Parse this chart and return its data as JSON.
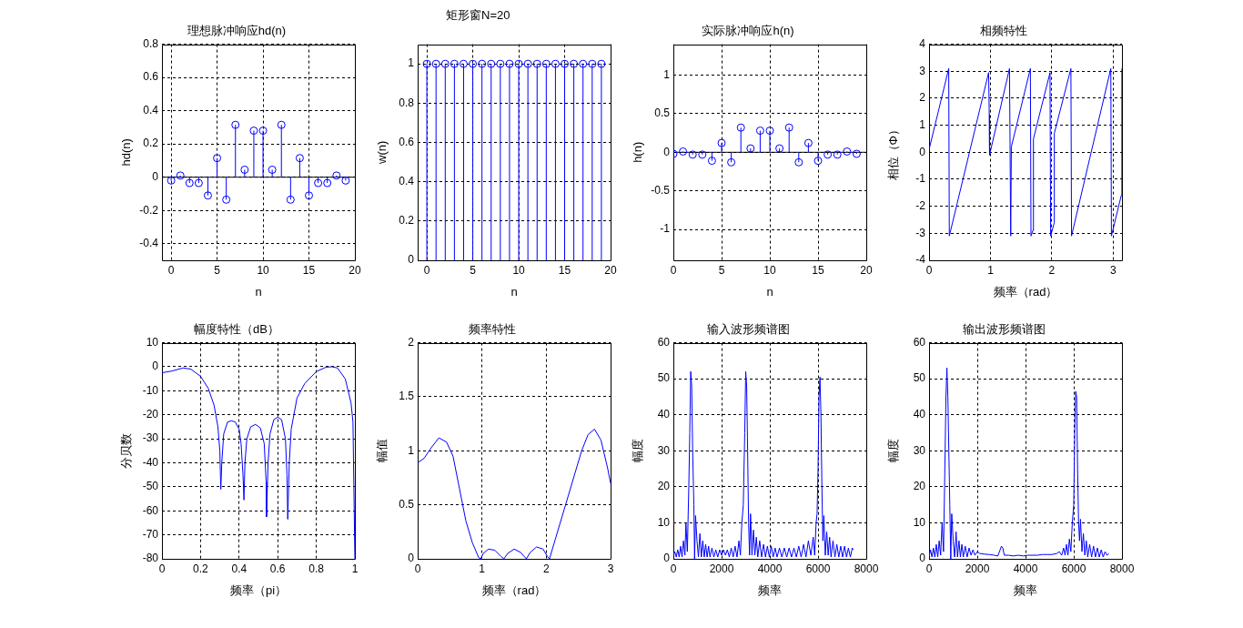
{
  "chart_data": [
    {
      "type": "other",
      "title": "矩形窗N=20"
    },
    {
      "type": "lollipop",
      "title": "理想脉冲响应hd(n)",
      "xlabel": "n",
      "ylabel": "hd(n)",
      "color": "#0000ff",
      "marker": "circle",
      "grid": true,
      "x": [
        0,
        1,
        2,
        3,
        4,
        5,
        6,
        7,
        8,
        9,
        10,
        11,
        12,
        13,
        14,
        15,
        16,
        17,
        18,
        19
      ],
      "values": [
        -0.02,
        0.01,
        -0.035,
        -0.035,
        -0.11,
        0.115,
        -0.135,
        0.315,
        0.045,
        0.28,
        0.28,
        0.045,
        0.315,
        -0.135,
        0.115,
        -0.11,
        -0.035,
        -0.035,
        0.01,
        -0.02
      ],
      "xlim": [
        -1,
        20
      ],
      "ylim": [
        -0.5,
        0.8
      ],
      "xticks": [
        0,
        5,
        10,
        15,
        20
      ],
      "yticks": [
        -0.4,
        -0.2,
        0,
        0.2,
        0.4,
        0.6,
        0.8
      ],
      "ref_lines": [
        {
          "axis": "y",
          "value": 0,
          "color": "#000000"
        }
      ]
    },
    {
      "type": "lollipop",
      "xlabel": "n",
      "ylabel": "w(n)",
      "color": "#0000ff",
      "marker": "circle",
      "grid": true,
      "x": [
        0,
        1,
        2,
        3,
        4,
        5,
        6,
        7,
        8,
        9,
        10,
        11,
        12,
        13,
        14,
        15,
        16,
        17,
        18,
        19
      ],
      "values": [
        1,
        1,
        1,
        1,
        1,
        1,
        1,
        1,
        1,
        1,
        1,
        1,
        1,
        1,
        1,
        1,
        1,
        1,
        1,
        1
      ],
      "xlim": [
        -1,
        20
      ],
      "ylim": [
        0,
        1.1
      ],
      "xticks": [
        0,
        5,
        10,
        15,
        20
      ],
      "yticks": [
        0,
        0.2,
        0.4,
        0.6,
        0.8,
        1
      ]
    },
    {
      "type": "lollipop",
      "title": "实际脉冲响应h(n)",
      "xlabel": "n",
      "ylabel": "h(n)",
      "color": "#0000ff",
      "marker": "circle",
      "grid": true,
      "x": [
        0,
        1,
        2,
        3,
        4,
        5,
        6,
        7,
        8,
        9,
        10,
        11,
        12,
        13,
        14,
        15,
        16,
        17,
        18,
        19
      ],
      "values": [
        -0.02,
        0.01,
        -0.03,
        -0.03,
        -0.11,
        0.12,
        -0.13,
        0.32,
        0.05,
        0.28,
        0.28,
        0.05,
        0.32,
        -0.13,
        0.12,
        -0.11,
        -0.03,
        -0.03,
        0.01,
        -0.02
      ],
      "xlim": [
        0,
        20
      ],
      "ylim": [
        -1.4,
        1.4
      ],
      "xticks": [
        0,
        5,
        10,
        15,
        20
      ],
      "yticks": [
        -1,
        -0.5,
        0,
        0.5,
        1
      ],
      "ref_lines": [
        {
          "axis": "y",
          "value": 0,
          "color": "#000000"
        }
      ]
    },
    {
      "type": "line",
      "title": "相频特性",
      "xlabel": "频率（rad）",
      "ylabel": "相位（Φ）",
      "color": "#0000ff",
      "grid": true,
      "x": [
        0,
        0.32,
        0.33,
        0.97,
        0.98,
        0.98,
        0.99,
        1.31,
        1.33,
        1.34,
        1.65,
        1.66,
        1.69,
        1.7,
        1.97,
        1.98,
        2.04,
        2.04,
        2.31,
        2.32,
        2.96,
        2.97,
        3.13,
        3.14
      ],
      "values": [
        0.1,
        3.1,
        -3.1,
        2.95,
        1.4,
        -0.1,
        -0.1,
        3.1,
        -3.1,
        0.2,
        3.1,
        -3.1,
        -2.9,
        0.5,
        2.95,
        -3.1,
        -2.6,
        0.7,
        3.1,
        -3.1,
        3.1,
        -3.1,
        -1.6,
        3.1
      ],
      "xlim": [
        0,
        3.1416
      ],
      "ylim": [
        -4,
        4
      ],
      "xticks": [
        0,
        1,
        2,
        3
      ],
      "yticks": [
        -4,
        -3,
        -2,
        -1,
        0,
        1,
        2,
        3,
        4
      ]
    },
    {
      "type": "line",
      "title": "幅度特性（dB）",
      "xlabel": "频率（pi）",
      "ylabel": "分贝数",
      "color": "#0000ff",
      "grid": true,
      "x": [
        0,
        0.05,
        0.11,
        0.15,
        0.2,
        0.24,
        0.27,
        0.29,
        0.3,
        0.305,
        0.31,
        0.32,
        0.34,
        0.36,
        0.38,
        0.4,
        0.41,
        0.42,
        0.425,
        0.43,
        0.44,
        0.46,
        0.485,
        0.51,
        0.53,
        0.54,
        0.542,
        0.55,
        0.56,
        0.58,
        0.6,
        0.62,
        0.64,
        0.648,
        0.652,
        0.66,
        0.67,
        0.7,
        0.74,
        0.8,
        0.85,
        0.88,
        0.91,
        0.95,
        0.98,
        0.99,
        1
      ],
      "values": [
        -2.5,
        -1.8,
        -0.5,
        -1,
        -4,
        -9,
        -16,
        -25,
        -35,
        -51,
        -40,
        -28,
        -23,
        -22.5,
        -23,
        -26,
        -32,
        -45,
        -55.5,
        -40,
        -30,
        -25,
        -24,
        -25.5,
        -32,
        -48,
        -62.5,
        -40,
        -28,
        -22,
        -21,
        -22,
        -30,
        -45,
        -63.5,
        -40,
        -26,
        -13,
        -7,
        -2,
        -0.2,
        0,
        -0.5,
        -5,
        -15,
        -23,
        -80
      ],
      "xlim": [
        0,
        1
      ],
      "ylim": [
        -80,
        10
      ],
      "xticks": [
        0,
        0.2,
        0.4,
        0.6,
        0.8,
        1
      ],
      "yticks": [
        -80,
        -70,
        -60,
        -50,
        -40,
        -30,
        -20,
        -10,
        0,
        10
      ]
    },
    {
      "type": "line",
      "title": "频率特性",
      "xlabel": "频率（rad）",
      "ylabel": "幅值",
      "color": "#0000ff",
      "grid": true,
      "x": [
        0,
        0.1,
        0.2,
        0.33,
        0.45,
        0.55,
        0.65,
        0.75,
        0.85,
        0.95,
        0.98,
        1.02,
        1.1,
        1.2,
        1.3,
        1.34,
        1.4,
        1.5,
        1.6,
        1.69,
        1.75,
        1.85,
        1.95,
        2.02,
        2.05,
        2.15,
        2.3,
        2.45,
        2.55,
        2.65,
        2.75,
        2.85,
        2.95,
        3
      ],
      "values": [
        0.89,
        0.93,
        1.02,
        1.12,
        1.08,
        0.95,
        0.65,
        0.35,
        0.15,
        0.01,
        0,
        0.05,
        0.09,
        0.08,
        0.02,
        0,
        0.05,
        0.09,
        0.06,
        0,
        0.06,
        0.11,
        0.09,
        0.02,
        0,
        0.2,
        0.5,
        0.8,
        1,
        1.15,
        1.2,
        1.1,
        0.85,
        0.7
      ],
      "xlim": [
        0,
        3
      ],
      "ylim": [
        0,
        2
      ],
      "xticks": [
        0,
        1,
        2,
        3
      ],
      "yticks": [
        0,
        0.5,
        1,
        1.5,
        2
      ]
    },
    {
      "type": "line",
      "title": "输入波形频谱图",
      "xlabel": "频率",
      "ylabel": "幅度",
      "color": "#0000ff",
      "grid": true,
      "x": [
        0,
        60,
        120,
        180,
        240,
        300,
        360,
        420,
        480,
        520,
        580,
        640,
        680,
        720,
        760,
        800,
        850,
        880,
        920,
        980,
        1040,
        1100,
        1160,
        1220,
        1280,
        1340,
        1400,
        1460,
        1520,
        1600,
        1680,
        1760,
        1840,
        1920,
        2000,
        2080,
        2160,
        2240,
        2320,
        2400,
        2480,
        2560,
        2640,
        2720,
        2780,
        2840,
        2900,
        2960,
        3000,
        3040,
        3080,
        3120,
        3160,
        3200,
        3260,
        3320,
        3380,
        3440,
        3500,
        3580,
        3660,
        3740,
        3820,
        3900,
        3980,
        4060,
        4140,
        4220,
        4300,
        4400,
        4500,
        4600,
        4700,
        4800,
        4900,
        5000,
        5100,
        5200,
        5300,
        5400,
        5500,
        5600,
        5700,
        5800,
        5860,
        5920,
        5960,
        6000,
        6040,
        6080,
        6120,
        6160,
        6200,
        6240,
        6300,
        6360,
        6420,
        6480,
        6540,
        6620,
        6700,
        6780,
        6860,
        6940,
        7020,
        7100,
        7180,
        7260,
        7340,
        7420,
        7460
      ],
      "values": [
        1,
        2,
        0.5,
        2.5,
        0.5,
        3.5,
        0.5,
        5,
        1,
        10,
        2,
        20,
        35,
        52,
        48,
        30,
        15,
        0,
        12,
        5,
        0.5,
        7,
        0.5,
        5,
        0.5,
        4,
        0.5,
        3.5,
        0.5,
        3,
        0.5,
        2.5,
        0.5,
        2.5,
        1,
        2.5,
        1,
        2.5,
        0.5,
        3,
        0.5,
        3.5,
        0.5,
        5,
        1,
        10,
        15,
        35,
        52,
        48,
        30,
        10,
        1,
        12.5,
        1,
        8,
        1,
        6,
        0.5,
        5,
        0.5,
        4,
        0.5,
        3.5,
        0.5,
        3.5,
        0.5,
        3,
        0.5,
        3,
        0.5,
        3,
        0.5,
        3,
        0.5,
        3,
        0.5,
        3.5,
        0.5,
        4,
        0.5,
        5,
        1,
        6,
        1,
        10,
        12.5,
        25,
        45,
        50.5,
        40,
        20,
        5,
        12,
        1,
        7.5,
        1,
        6,
        0.5,
        5,
        0.5,
        4,
        0.5,
        3.5,
        0.5,
        3.5,
        0.5,
        3,
        0.5,
        3,
        2.5
      ],
      "xlim": [
        0,
        8000
      ],
      "ylim": [
        0,
        60
      ],
      "xticks": [
        0,
        2000,
        4000,
        6000,
        8000
      ],
      "yticks": [
        0,
        10,
        20,
        30,
        40,
        50,
        60
      ]
    },
    {
      "type": "line",
      "title": "输出波形频谱图",
      "xlabel": "频率",
      "ylabel": "幅度",
      "color": "#0000ff",
      "grid": true,
      "x": [
        0,
        60,
        120,
        180,
        240,
        300,
        360,
        420,
        480,
        540,
        600,
        650,
        700,
        740,
        780,
        820,
        860,
        900,
        940,
        1000,
        1060,
        1120,
        1180,
        1240,
        1300,
        1360,
        1420,
        1500,
        1580,
        1660,
        1740,
        1820,
        1900,
        2000,
        2100,
        2300,
        2500,
        2700,
        2850,
        2920,
        3000,
        3060,
        3120,
        3300,
        3500,
        3700,
        3900,
        4100,
        4300,
        4500,
        4700,
        4900,
        5100,
        5300,
        5400,
        5500,
        5580,
        5640,
        5700,
        5760,
        5820,
        5880,
        5940,
        6000,
        6040,
        6080,
        6120,
        6160,
        6200,
        6240,
        6280,
        6340,
        6400,
        6460,
        6520,
        6580,
        6660,
        6740,
        6820,
        6900,
        6980,
        7060,
        7140,
        7220,
        7300,
        7380,
        7460
      ],
      "values": [
        0.5,
        2.5,
        0.5,
        3,
        0.5,
        4,
        0.5,
        5,
        1,
        10,
        2,
        23,
        45,
        53,
        45,
        30,
        15,
        0,
        12.5,
        5,
        0.5,
        7.5,
        0.5,
        5,
        0.5,
        4,
        0.5,
        3.5,
        0.5,
        3,
        1,
        2.5,
        1,
        2,
        1.5,
        1.3,
        1.2,
        1,
        0.8,
        2,
        3.5,
        3,
        1,
        1,
        0.8,
        1,
        0.8,
        1,
        1,
        1,
        1.2,
        1.2,
        1.2,
        1.5,
        2,
        1,
        3,
        1,
        4,
        1,
        5.5,
        2,
        10,
        15,
        35,
        46.5,
        45,
        25,
        10,
        5,
        11,
        2,
        7,
        1,
        5,
        0.5,
        4,
        0.5,
        3.5,
        0.5,
        3,
        0.5,
        2.5,
        0.5,
        2,
        1,
        1.5
      ],
      "xlim": [
        0,
        8000
      ],
      "ylim": [
        0,
        60
      ],
      "xticks": [
        0,
        2000,
        4000,
        6000,
        8000
      ],
      "yticks": [
        0,
        10,
        20,
        30,
        40,
        50,
        60
      ]
    }
  ]
}
